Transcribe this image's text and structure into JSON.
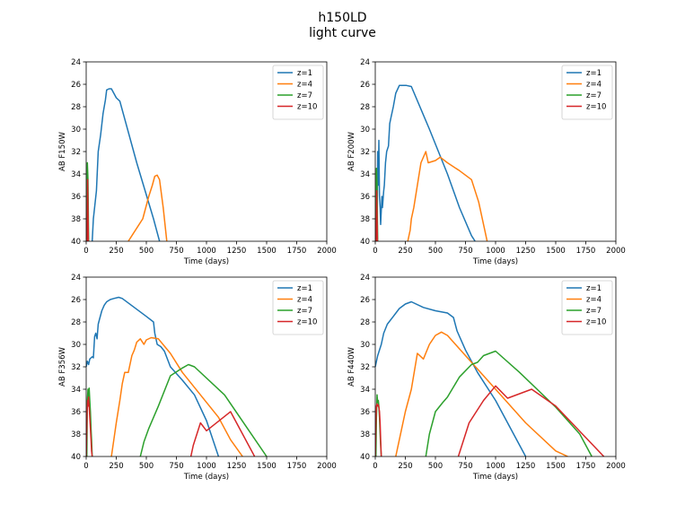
{
  "figure": {
    "title_line1": "h150LD",
    "title_line2": "light curve"
  },
  "colors": {
    "z=1": "#1f77b4",
    "z=4": "#ff7f0e",
    "z=7": "#2ca02c",
    "z=10": "#d62728"
  },
  "chart_data": [
    {
      "type": "line",
      "xlabel": "Time (days)",
      "ylabel": "AB F150W",
      "xlim": [
        0,
        2000
      ],
      "ylim": [
        40,
        24
      ],
      "xticks": [
        "0",
        "250",
        "500",
        "750",
        "1000",
        "1250",
        "1500",
        "1750",
        "2000"
      ],
      "yticks": [
        "24",
        "26",
        "28",
        "30",
        "32",
        "34",
        "36",
        "38",
        "40"
      ],
      "legend": "top-right",
      "series": [
        {
          "name": "z=1",
          "x": [
            50,
            60,
            85,
            100,
            120,
            140,
            160,
            170,
            190,
            210,
            230,
            250,
            280,
            420,
            560,
            610
          ],
          "y": [
            40,
            38,
            35.5,
            32,
            30.5,
            28.6,
            27.4,
            26.5,
            26.4,
            26.4,
            26.8,
            27.2,
            27.5,
            33,
            38,
            40
          ]
        },
        {
          "name": "z=4",
          "x": [
            350,
            470,
            520,
            550,
            570,
            590,
            610,
            640,
            670
          ],
          "y": [
            40,
            38,
            36,
            35,
            34.2,
            34.1,
            34.5,
            37,
            40
          ]
        },
        {
          "name": "z=7",
          "x": [
            5,
            10,
            15,
            20
          ],
          "y": [
            40,
            33,
            34.5,
            40
          ]
        },
        {
          "name": "z=10",
          "x": [
            8,
            12,
            18
          ],
          "y": [
            40,
            34.5,
            40
          ]
        }
      ]
    },
    {
      "type": "line",
      "xlabel": "Time (days)",
      "ylabel": "AB F200W",
      "xlim": [
        0,
        2000
      ],
      "ylim": [
        40,
        24
      ],
      "xticks": [
        "0",
        "250",
        "500",
        "750",
        "1000",
        "1250",
        "1500",
        "1750",
        "2000"
      ],
      "yticks": [
        "24",
        "26",
        "28",
        "30",
        "32",
        "34",
        "36",
        "38",
        "40"
      ],
      "legend": "top-right",
      "series": [
        {
          "name": "z=1",
          "x": [
            15,
            20,
            25,
            30,
            35,
            40,
            45,
            55,
            60,
            70,
            75,
            85,
            95,
            110,
            120,
            130,
            150,
            170,
            200,
            230,
            260,
            300,
            450,
            600,
            700,
            800,
            830
          ],
          "y": [
            40,
            32,
            35,
            31,
            36,
            37,
            38.5,
            36,
            37,
            35.5,
            35,
            33,
            32,
            31.5,
            29.5,
            29,
            28,
            26.8,
            26.1,
            26.1,
            26.1,
            26.2,
            30,
            34,
            37,
            39.5,
            40
          ]
        },
        {
          "name": "z=4",
          "x": [
            270,
            290,
            300,
            320,
            380,
            420,
            440,
            500,
            540,
            600,
            700,
            800,
            860,
            920,
            930
          ],
          "y": [
            40,
            39,
            38,
            37,
            33,
            32,
            33,
            32.8,
            32.5,
            33,
            33.7,
            34.5,
            36.5,
            39.5,
            40
          ]
        },
        {
          "name": "z=7",
          "x": [
            5,
            10,
            15,
            20
          ],
          "y": [
            40,
            33.5,
            35,
            40
          ]
        },
        {
          "name": "z=10",
          "x": [
            8,
            12,
            18
          ],
          "y": [
            40,
            35.5,
            40
          ]
        }
      ]
    },
    {
      "type": "line",
      "xlabel": "Time (days)",
      "ylabel": "AB F356W",
      "xlim": [
        0,
        2000
      ],
      "ylim": [
        40,
        24
      ],
      "xticks": [
        "0",
        "250",
        "500",
        "750",
        "1000",
        "1250",
        "1500",
        "1750",
        "2000"
      ],
      "yticks": [
        "24",
        "26",
        "28",
        "30",
        "32",
        "34",
        "36",
        "38",
        "40"
      ],
      "legend": "top-right",
      "series": [
        {
          "name": "z=1",
          "x": [
            0,
            10,
            20,
            30,
            40,
            50,
            60,
            70,
            80,
            90,
            100,
            110,
            130,
            150,
            170,
            200,
            230,
            270,
            300,
            400,
            500,
            560,
            570,
            590,
            620,
            650,
            700,
            800,
            900,
            1000,
            1100
          ],
          "y": [
            32,
            31.5,
            31.8,
            31.3,
            31.2,
            31.1,
            31.2,
            29.3,
            29,
            29.5,
            28.2,
            27.8,
            27,
            26.5,
            26.2,
            26,
            25.9,
            25.8,
            25.9,
            26.7,
            27.5,
            28,
            29,
            30,
            30.2,
            30.6,
            32,
            33.2,
            34.5,
            36.8,
            40
          ]
        },
        {
          "name": "z=4",
          "x": [
            210,
            230,
            250,
            280,
            300,
            320,
            350,
            380,
            400,
            420,
            450,
            480,
            500,
            540,
            600,
            700,
            800,
            950,
            1100,
            1200,
            1300
          ],
          "y": [
            40,
            38.5,
            37,
            35,
            33.5,
            32.5,
            32.5,
            31,
            30.5,
            29.8,
            29.5,
            30,
            29.6,
            29.4,
            29.5,
            30.8,
            32.5,
            34.5,
            36.5,
            38.5,
            40
          ]
        },
        {
          "name": "z=7",
          "x": [
            450,
            480,
            520,
            600,
            700,
            800,
            850,
            900,
            1150,
            1500
          ],
          "y": [
            40,
            38.7,
            37.5,
            35.5,
            32.8,
            32.1,
            31.8,
            32,
            34.5,
            40
          ]
        },
        {
          "name": "z=10",
          "x": [
            870,
            890,
            950,
            1000,
            1200,
            1400
          ],
          "y": [
            40,
            39,
            37,
            37.7,
            36,
            40
          ]
        },
        {
          "name": "z=7 (early)",
          "legend": false,
          "color_key": "z=7",
          "x": [
            5,
            10,
            15,
            20,
            25,
            30,
            35,
            40,
            45,
            50
          ],
          "y": [
            40,
            35,
            34,
            35.5,
            33.9,
            35,
            36,
            37.5,
            38.5,
            40
          ]
        },
        {
          "name": "z=10 (early)",
          "legend": false,
          "color_key": "z=10",
          "x": [
            0,
            4,
            8,
            12,
            16,
            20,
            25,
            30,
            35,
            40,
            45,
            50
          ],
          "y": [
            40,
            38,
            36,
            35,
            35.5,
            34.7,
            35.5,
            36.5,
            37.5,
            38.5,
            39.5,
            40
          ]
        }
      ]
    },
    {
      "type": "line",
      "xlabel": "Time (days)",
      "ylabel": "AB F440W",
      "xlim": [
        0,
        2000
      ],
      "ylim": [
        40,
        24
      ],
      "xticks": [
        "0",
        "250",
        "500",
        "750",
        "1000",
        "1250",
        "1500",
        "1750",
        "2000"
      ],
      "yticks": [
        "24",
        "26",
        "28",
        "30",
        "32",
        "34",
        "36",
        "38",
        "40"
      ],
      "legend": "top-right",
      "series": [
        {
          "name": "z=1",
          "x": [
            0,
            20,
            50,
            70,
            100,
            150,
            200,
            250,
            300,
            400,
            500,
            600,
            650,
            680,
            750,
            850,
            1000,
            1250
          ],
          "y": [
            32,
            31,
            30,
            29,
            28.2,
            27.5,
            26.8,
            26.4,
            26.2,
            26.7,
            27,
            27.2,
            27.6,
            28.8,
            30.5,
            32.5,
            35,
            40
          ]
        },
        {
          "name": "z=4",
          "x": [
            170,
            200,
            250,
            300,
            350,
            400,
            450,
            500,
            550,
            600,
            750,
            1000,
            1250,
            1500,
            1600
          ],
          "y": [
            40,
            38.5,
            36,
            34,
            30.8,
            31.3,
            30,
            29.2,
            28.9,
            29.2,
            31,
            34,
            37,
            39.5,
            40
          ]
        },
        {
          "name": "z=7",
          "x": [
            420,
            450,
            500,
            560,
            600,
            650,
            700,
            800,
            850,
            900,
            1000,
            1200,
            1500,
            1700,
            1800
          ],
          "y": [
            40,
            38,
            36,
            35.2,
            34.7,
            33.8,
            32.9,
            31.8,
            31.6,
            31,
            30.6,
            32.5,
            35.6,
            38,
            40
          ]
        },
        {
          "name": "z=10",
          "x": [
            690,
            720,
            780,
            900,
            1000,
            1100,
            1300,
            1500,
            1900
          ],
          "y": [
            40,
            39,
            37,
            35,
            33.7,
            34.8,
            34,
            35.5,
            40
          ]
        },
        {
          "name": "z=7 (early)",
          "legend": false,
          "color_key": "z=7",
          "x": [
            5,
            10,
            15,
            20,
            25,
            30,
            35,
            40,
            45,
            50
          ],
          "y": [
            40,
            36.5,
            34.5,
            35.2,
            35,
            35.5,
            36.5,
            38,
            39,
            40
          ]
        },
        {
          "name": "z=10 (early)",
          "legend": false,
          "color_key": "z=10",
          "x": [
            0,
            5,
            10,
            15,
            20,
            25,
            30,
            35,
            40,
            45,
            50
          ],
          "y": [
            40,
            37,
            35.5,
            35.3,
            35.5,
            35.4,
            35.6,
            36,
            37,
            38.5,
            40
          ]
        }
      ]
    }
  ]
}
